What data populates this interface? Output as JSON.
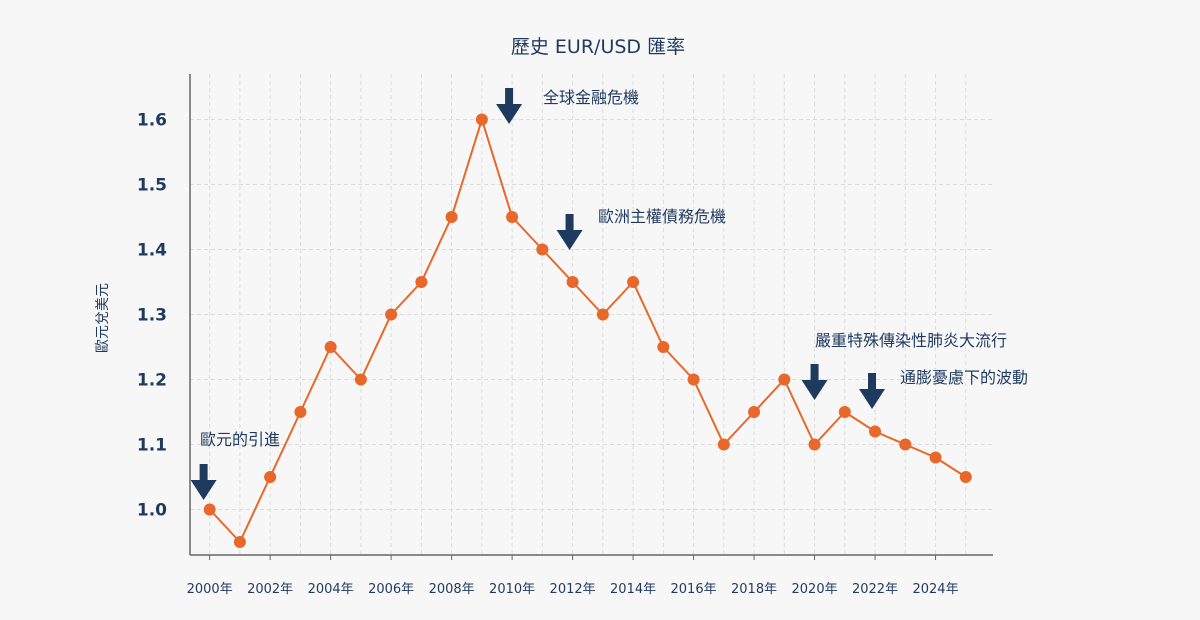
{
  "chart_data": {
    "type": "line",
    "title": "歷史 EUR/USD 匯率",
    "xlabel": "",
    "ylabel": "歐元兌美元",
    "ylim": [
      0.93,
      1.67
    ],
    "xlim": [
      1999.35,
      2025.9
    ],
    "grid": true,
    "y_ticks": [
      1.0,
      1.1,
      1.2,
      1.3,
      1.4,
      1.5,
      1.6
    ],
    "y_tick_labels": [
      "1.0",
      "1.1",
      "1.2",
      "1.3",
      "1.4",
      "1.5",
      "1.6"
    ],
    "x_ticks": [
      2000,
      2002,
      2004,
      2006,
      2008,
      2010,
      2012,
      2014,
      2016,
      2018,
      2020,
      2022,
      2024
    ],
    "x_tick_labels": [
      "2000年",
      "2002年",
      "2004年",
      "2006年",
      "2008年",
      "2010年",
      "2012年",
      "2014年",
      "2016年",
      "2018年",
      "2020年",
      "2022年",
      "2024年"
    ],
    "series": [
      {
        "x": [
          2000,
          2001,
          2002,
          2003,
          2004,
          2005,
          2006,
          2007,
          2008,
          2009,
          2010,
          2011,
          2012,
          2013,
          2014,
          2015,
          2016,
          2017,
          2018,
          2019,
          2020,
          2021,
          2022,
          2023,
          2024,
          2025
        ],
        "values": [
          1.0,
          0.95,
          1.05,
          1.15,
          1.25,
          1.2,
          1.3,
          1.35,
          1.45,
          1.6,
          1.45,
          1.4,
          1.35,
          1.3,
          1.35,
          1.25,
          1.2,
          1.1,
          1.15,
          1.2,
          1.1,
          1.15,
          1.12,
          1.1,
          1.08,
          1.05
        ]
      }
    ],
    "colors": {
      "line": "#e8672a",
      "marker": "#e8672a",
      "arrow": "#1f3a5f",
      "text": "#1f3a5f",
      "grid": "#dcdcdc",
      "axis": "#666666"
    },
    "annotations": [
      {
        "text": "歐元的引進",
        "x": 1999.8,
        "y": 1.0
      },
      {
        "text": "全球金融危機",
        "x": 2009.9,
        "y": 1.6
      },
      {
        "text": "歐洲主權債務危機",
        "x": 2011.9,
        "y": 1.4
      },
      {
        "text": "嚴重特殊傳染性肺炎大流行",
        "x": 2020.0,
        "y": 1.2
      },
      {
        "text": "通膨憂慮下的波動",
        "x": 2021.9,
        "y": 1.15
      }
    ]
  }
}
